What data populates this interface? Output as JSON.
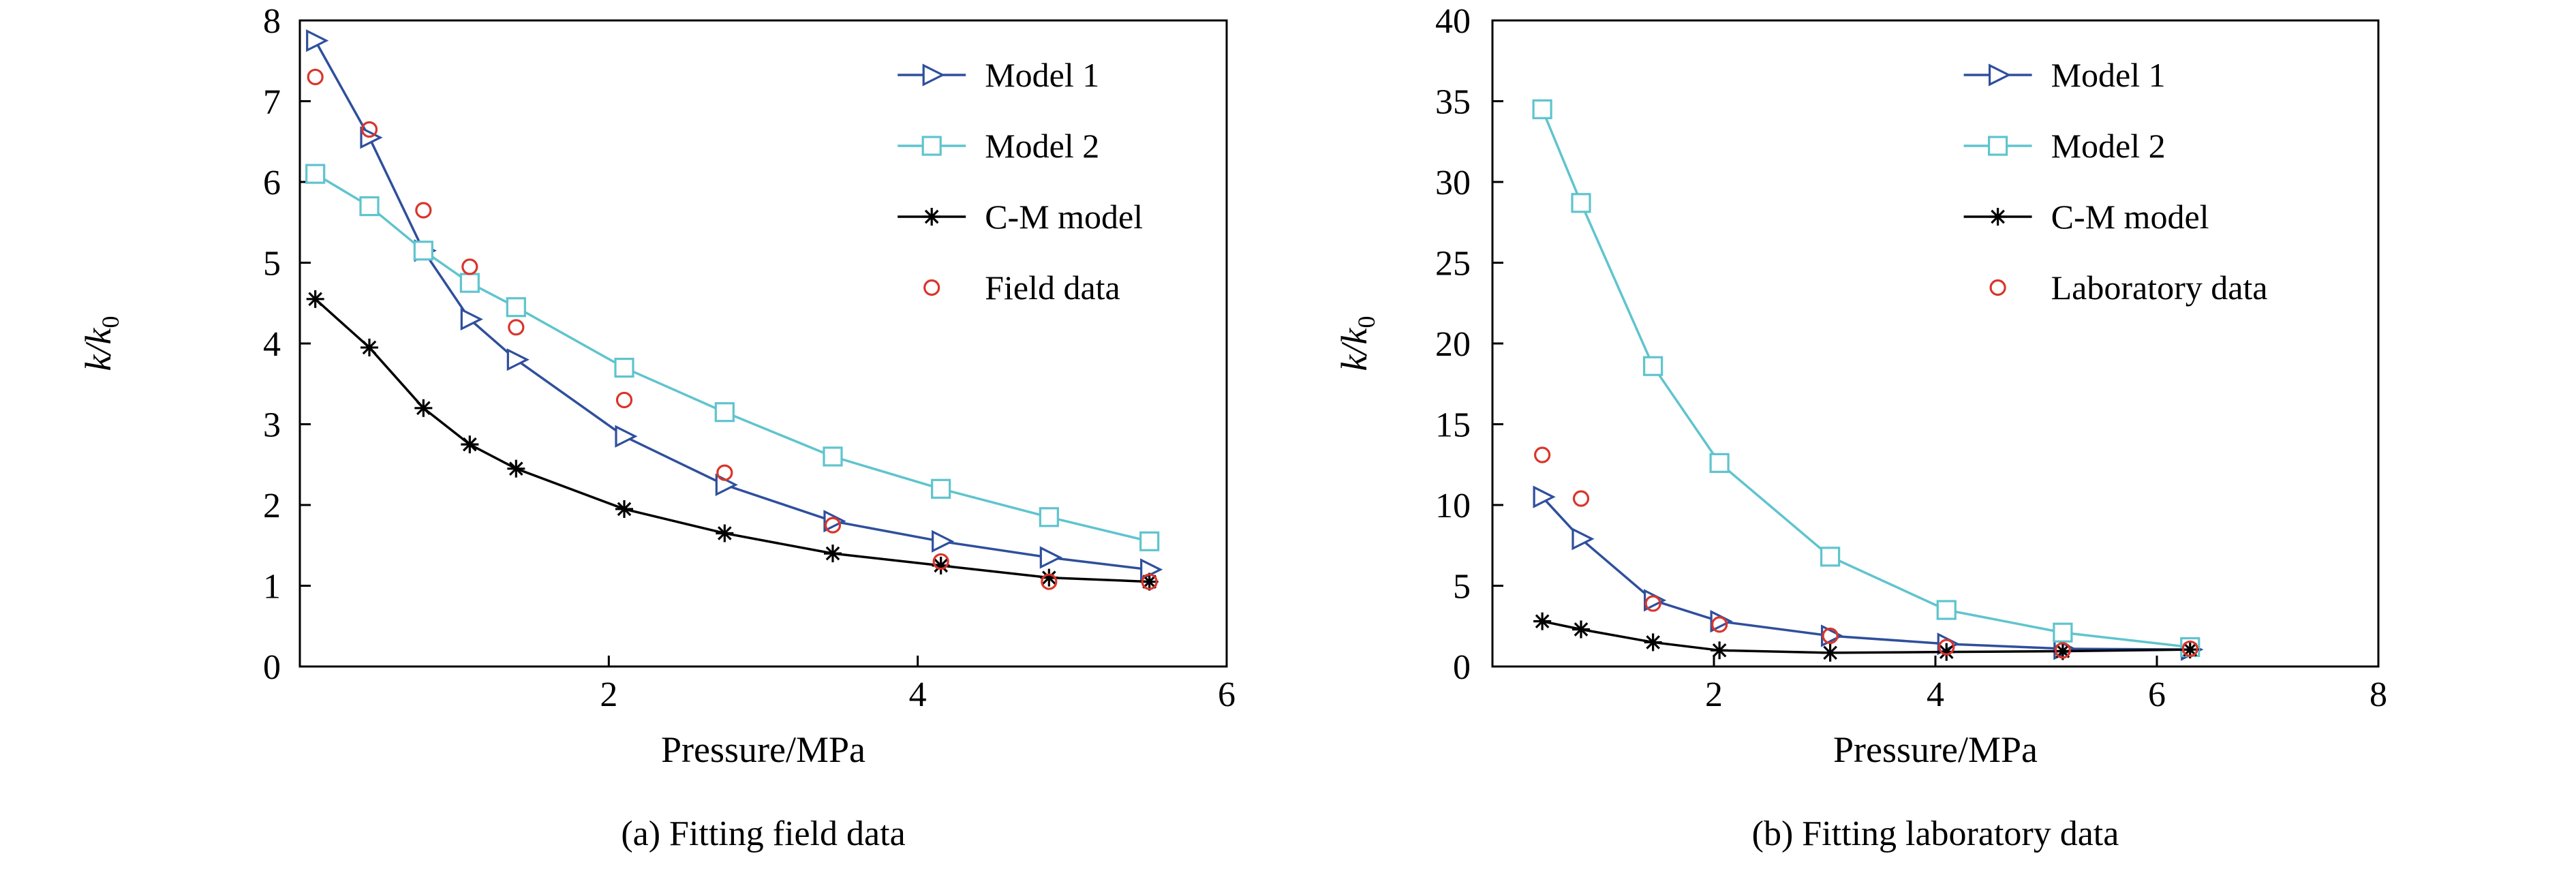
{
  "page": {
    "background": "#ffffff"
  },
  "colors": {
    "axis": "#000000",
    "model1": "#2f4f9d",
    "model2": "#5fc4ce",
    "cm": "#000000",
    "observed": "#d9352b"
  },
  "chart_data": [
    {
      "type": "line",
      "panel": "a",
      "title": "(a) Fitting field data",
      "xlabel": "Pressure/MPa",
      "ylabel": "k/k0",
      "ylabel_rich": {
        "base": "k/k",
        "sub": "0"
      },
      "xlim": [
        0,
        6
      ],
      "ylim": [
        0,
        8
      ],
      "xticks": [
        2,
        4,
        6
      ],
      "yticks": [
        0,
        1,
        2,
        3,
        4,
        5,
        6,
        7,
        8
      ],
      "grid": false,
      "legend_position": "top-right-inside",
      "series": [
        {
          "name": "Model 1",
          "marker": "triangle-right",
          "color_key": "model1",
          "show_line": true,
          "x": [
            0.1,
            0.45,
            0.8,
            1.1,
            1.4,
            2.1,
            2.75,
            3.45,
            4.15,
            4.85,
            5.5
          ],
          "y": [
            7.75,
            6.55,
            5.15,
            4.3,
            3.8,
            2.85,
            2.25,
            1.8,
            1.55,
            1.35,
            1.2
          ]
        },
        {
          "name": "Model 2",
          "marker": "square",
          "color_key": "model2",
          "show_line": true,
          "x": [
            0.1,
            0.45,
            0.8,
            1.1,
            1.4,
            2.1,
            2.75,
            3.45,
            4.15,
            4.85,
            5.5
          ],
          "y": [
            6.1,
            5.7,
            5.15,
            4.75,
            4.45,
            3.7,
            3.15,
            2.6,
            2.2,
            1.85,
            1.55
          ]
        },
        {
          "name": "C-M model",
          "marker": "asterisk",
          "color_key": "cm",
          "show_line": true,
          "x": [
            0.1,
            0.45,
            0.8,
            1.1,
            1.4,
            2.1,
            2.75,
            3.45,
            4.15,
            4.85,
            5.5
          ],
          "y": [
            4.55,
            3.95,
            3.2,
            2.75,
            2.45,
            1.95,
            1.65,
            1.4,
            1.25,
            1.1,
            1.05
          ]
        },
        {
          "name": "Field data",
          "marker": "circle",
          "color_key": "observed",
          "show_line": false,
          "x": [
            0.1,
            0.45,
            0.8,
            1.1,
            1.4,
            2.1,
            2.75,
            3.45,
            4.15,
            4.85,
            5.5
          ],
          "y": [
            7.3,
            6.65,
            5.65,
            4.95,
            4.2,
            3.3,
            2.4,
            1.75,
            1.3,
            1.05,
            1.05
          ]
        }
      ]
    },
    {
      "type": "line",
      "panel": "b",
      "title": "(b) Fitting laboratory data",
      "xlabel": "Pressure/MPa",
      "ylabel": "k/k0",
      "ylabel_rich": {
        "base": "k/k",
        "sub": "0"
      },
      "xlim": [
        0,
        8
      ],
      "ylim": [
        0,
        40
      ],
      "xticks": [
        2,
        4,
        6,
        8
      ],
      "yticks": [
        0,
        5,
        10,
        15,
        20,
        25,
        30,
        35,
        40
      ],
      "grid": false,
      "legend_position": "top-right-inside",
      "series": [
        {
          "name": "Model 1",
          "marker": "triangle-right",
          "color_key": "model1",
          "show_line": true,
          "x": [
            0.45,
            0.8,
            1.45,
            2.05,
            3.05,
            4.1,
            5.15,
            6.3
          ],
          "y": [
            10.5,
            7.9,
            4.1,
            2.8,
            1.9,
            1.4,
            1.1,
            1.05
          ]
        },
        {
          "name": "Model 2",
          "marker": "square",
          "color_key": "model2",
          "show_line": true,
          "x": [
            0.45,
            0.8,
            1.45,
            2.05,
            3.05,
            4.1,
            5.15,
            6.3
          ],
          "y": [
            34.5,
            28.7,
            18.6,
            12.6,
            6.8,
            3.5,
            2.1,
            1.2
          ]
        },
        {
          "name": "C-M model",
          "marker": "asterisk",
          "color_key": "cm",
          "show_line": true,
          "x": [
            0.45,
            0.8,
            1.45,
            2.05,
            3.05,
            4.1,
            5.15,
            6.3
          ],
          "y": [
            2.8,
            2.3,
            1.5,
            1.0,
            0.85,
            0.9,
            0.95,
            1.05
          ]
        },
        {
          "name": "Laboratory data",
          "marker": "circle",
          "color_key": "observed",
          "show_line": false,
          "x": [
            0.45,
            0.8,
            1.45,
            2.05,
            3.05,
            4.1,
            5.15,
            6.3
          ],
          "y": [
            13.1,
            10.4,
            3.9,
            2.6,
            1.9,
            1.2,
            1.0,
            1.1
          ]
        }
      ]
    }
  ]
}
